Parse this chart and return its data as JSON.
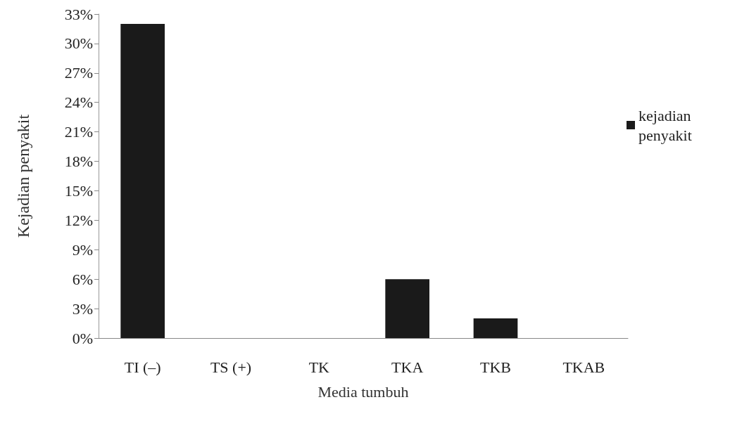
{
  "chart_data": {
    "type": "bar",
    "xlabel": "Media tumbuh",
    "ylabel": "Kejadian penyakit",
    "categories": [
      "TI (–)",
      "TS (+)",
      "TK",
      "TKA",
      "TKB",
      "TKAB"
    ],
    "series": [
      {
        "name": "kejadian penyakit",
        "color": "#1a1a1a",
        "values": [
          32,
          0,
          0,
          6,
          2,
          0
        ]
      }
    ],
    "ylim": [
      0,
      33
    ],
    "yticks": [
      {
        "value": 0,
        "label": "0%"
      },
      {
        "value": 3,
        "label": "3%"
      },
      {
        "value": 6,
        "label": "6%"
      },
      {
        "value": 9,
        "label": "9%"
      },
      {
        "value": 12,
        "label": "12%"
      },
      {
        "value": 15,
        "label": "15%"
      },
      {
        "value": 18,
        "label": "18%"
      },
      {
        "value": 21,
        "label": "21%"
      },
      {
        "value": 24,
        "label": "24%"
      },
      {
        "value": 27,
        "label": "27%"
      },
      {
        "value": 30,
        "label": "30%"
      },
      {
        "value": 33,
        "label": "33%"
      }
    ],
    "grid": false,
    "legend": "right"
  }
}
